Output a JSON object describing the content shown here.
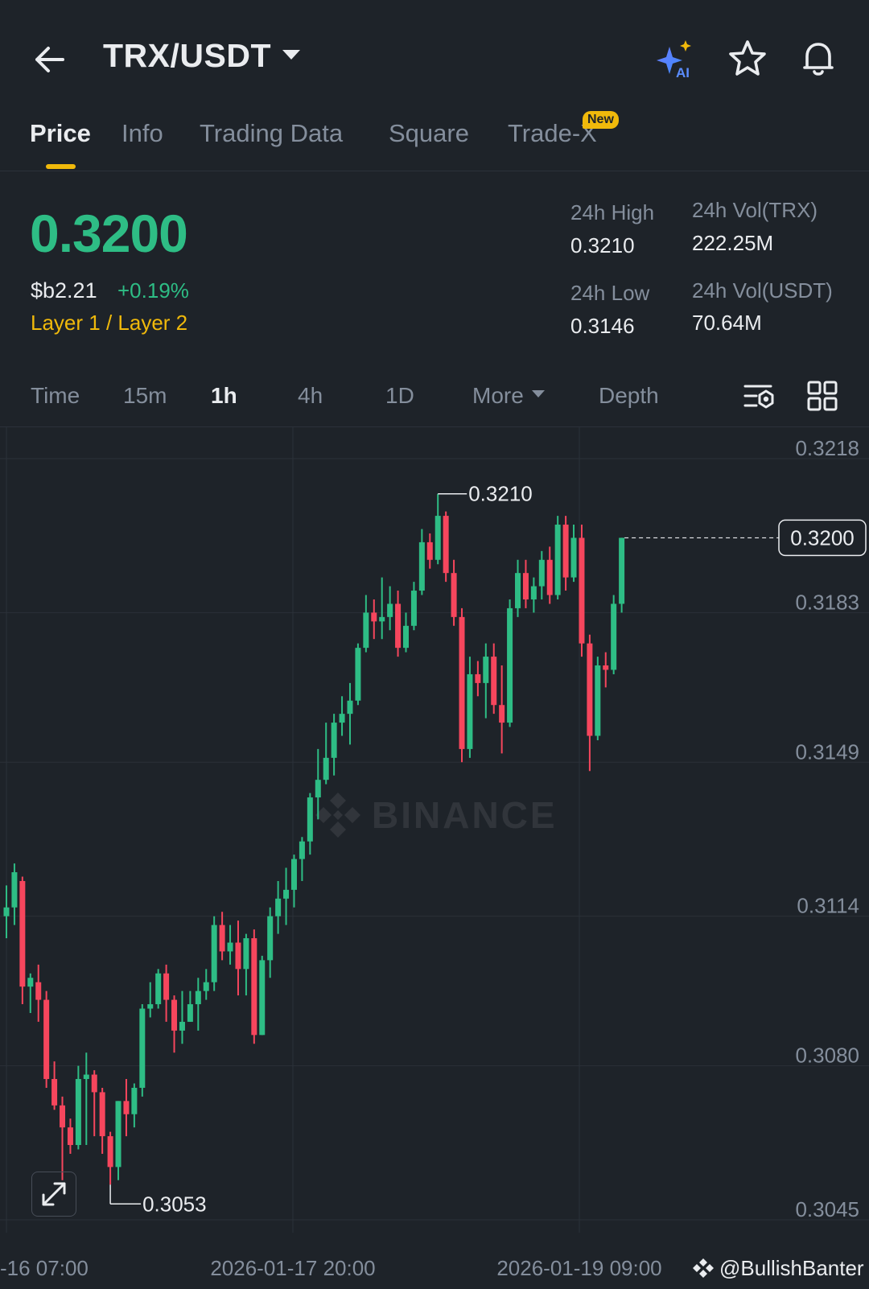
{
  "header": {
    "pair": "TRX/USDT",
    "icons": [
      "back-arrow-icon",
      "ai-sparkle-icon",
      "star-icon",
      "bell-icon"
    ],
    "ai_label": "AI"
  },
  "tabs": [
    {
      "label": "Price",
      "active": true
    },
    {
      "label": "Info"
    },
    {
      "label": "Trading Data"
    },
    {
      "label": "Square"
    },
    {
      "label": "Trade-X",
      "badge": "New"
    }
  ],
  "ticker": {
    "last_price": "0.3200",
    "fiat_price": "$b2.21",
    "change": "+0.19%",
    "tags": "Layer 1 / Layer 2",
    "high_label": "24h High",
    "high": "0.3210",
    "low_label": "24h Low",
    "low": "0.3146",
    "vol_base_label": "24h Vol(TRX)",
    "vol_base": "222.25M",
    "vol_quote_label": "24h Vol(USDT)",
    "vol_quote": "70.64M"
  },
  "intervals": [
    "Time",
    "15m",
    "1h",
    "4h",
    "1D",
    "More",
    "Depth"
  ],
  "active_interval": "1h",
  "watermark": "BINANCE",
  "credit": "@BullishBanter",
  "colors": {
    "up": "#2ebd85",
    "down": "#f6465d",
    "accent": "#f0b90b",
    "bg": "#1e2329"
  },
  "chart_data": {
    "type": "candlestick",
    "interval": "1h",
    "y_ticks": [
      "0.3218",
      "0.3183",
      "0.3149",
      "0.3114",
      "0.3080",
      "0.3045"
    ],
    "x_ticks": [
      "-16 07:00",
      "2026-01-17 20:00",
      "2026-01-19 09:00"
    ],
    "ylim": [
      0.3045,
      0.3218
    ],
    "last_price_label": "0.3200",
    "max_label": "0.3210",
    "min_label": "0.3053",
    "candles": [
      [
        0.3114,
        0.3121,
        0.3109,
        0.3116
      ],
      [
        0.3116,
        0.3126,
        0.3112,
        0.3124
      ],
      [
        0.3122,
        0.3123,
        0.3094,
        0.3098
      ],
      [
        0.3098,
        0.3101,
        0.3092,
        0.31
      ],
      [
        0.3099,
        0.3103,
        0.309,
        0.3095
      ],
      [
        0.3095,
        0.3097,
        0.3075,
        0.3077
      ],
      [
        0.3077,
        0.3081,
        0.307,
        0.3071
      ],
      [
        0.3071,
        0.3073,
        0.3054,
        0.3066
      ],
      [
        0.3066,
        0.3068,
        0.306,
        0.3062
      ],
      [
        0.3062,
        0.308,
        0.3061,
        0.3077
      ],
      [
        0.3077,
        0.3083,
        0.3062,
        0.3078
      ],
      [
        0.3078,
        0.3079,
        0.3064,
        0.3074
      ],
      [
        0.3074,
        0.3075,
        0.306,
        0.3064
      ],
      [
        0.3064,
        0.3065,
        0.3053,
        0.3057
      ],
      [
        0.3057,
        0.3072,
        0.3054,
        0.3072
      ],
      [
        0.3072,
        0.3077,
        0.3064,
        0.3069
      ],
      [
        0.3069,
        0.3076,
        0.3066,
        0.3075
      ],
      [
        0.3075,
        0.3094,
        0.3073,
        0.3093
      ],
      [
        0.3093,
        0.3099,
        0.3091,
        0.3094
      ],
      [
        0.3094,
        0.3102,
        0.3093,
        0.3101
      ],
      [
        0.3101,
        0.3103,
        0.309,
        0.3095
      ],
      [
        0.3095,
        0.3096,
        0.3083,
        0.3088
      ],
      [
        0.3088,
        0.3097,
        0.3085,
        0.309
      ],
      [
        0.309,
        0.3097,
        0.309,
        0.3094
      ],
      [
        0.3094,
        0.31,
        0.3088,
        0.3097
      ],
      [
        0.3097,
        0.3102,
        0.3095,
        0.3099
      ],
      [
        0.3099,
        0.3114,
        0.3097,
        0.3112
      ],
      [
        0.3112,
        0.3115,
        0.3104,
        0.3106
      ],
      [
        0.3106,
        0.3112,
        0.3103,
        0.3108
      ],
      [
        0.3108,
        0.3113,
        0.3096,
        0.3102
      ],
      [
        0.3102,
        0.311,
        0.3096,
        0.3109
      ],
      [
        0.3109,
        0.3111,
        0.3085,
        0.3087
      ],
      [
        0.3087,
        0.3105,
        0.3087,
        0.3104
      ],
      [
        0.3104,
        0.3116,
        0.31,
        0.3114
      ],
      [
        0.3114,
        0.3122,
        0.311,
        0.3118
      ],
      [
        0.3118,
        0.3125,
        0.3112,
        0.312
      ],
      [
        0.312,
        0.3128,
        0.3116,
        0.3127
      ],
      [
        0.3127,
        0.3132,
        0.3122,
        0.3131
      ],
      [
        0.3131,
        0.3142,
        0.3128,
        0.3141
      ],
      [
        0.3141,
        0.3152,
        0.3136,
        0.3145
      ],
      [
        0.3145,
        0.3158,
        0.3144,
        0.315
      ],
      [
        0.315,
        0.316,
        0.3146,
        0.3158
      ],
      [
        0.3158,
        0.3164,
        0.3155,
        0.316
      ],
      [
        0.316,
        0.3167,
        0.3153,
        0.3163
      ],
      [
        0.3163,
        0.3176,
        0.3162,
        0.3175
      ],
      [
        0.3175,
        0.3187,
        0.3174,
        0.3183
      ],
      [
        0.3183,
        0.3186,
        0.3177,
        0.3181
      ],
      [
        0.3181,
        0.3191,
        0.3177,
        0.3182
      ],
      [
        0.3182,
        0.3189,
        0.3179,
        0.3185
      ],
      [
        0.3185,
        0.3188,
        0.3173,
        0.3175
      ],
      [
        0.3175,
        0.3183,
        0.3174,
        0.318
      ],
      [
        0.318,
        0.319,
        0.3179,
        0.3188
      ],
      [
        0.3188,
        0.3202,
        0.3187,
        0.3199
      ],
      [
        0.3199,
        0.3201,
        0.3193,
        0.3195
      ],
      [
        0.3195,
        0.321,
        0.3194,
        0.3205
      ],
      [
        0.3205,
        0.3206,
        0.319,
        0.3192
      ],
      [
        0.3192,
        0.3195,
        0.318,
        0.3182
      ],
      [
        0.3182,
        0.3184,
        0.3149,
        0.3152
      ],
      [
        0.3152,
        0.3173,
        0.315,
        0.3169
      ],
      [
        0.3169,
        0.3172,
        0.3164,
        0.3167
      ],
      [
        0.3167,
        0.3176,
        0.3159,
        0.3173
      ],
      [
        0.3173,
        0.3176,
        0.316,
        0.3162
      ],
      [
        0.3162,
        0.3171,
        0.3151,
        0.3158
      ],
      [
        0.3158,
        0.3186,
        0.3157,
        0.3184
      ],
      [
        0.3184,
        0.3195,
        0.3182,
        0.3192
      ],
      [
        0.3192,
        0.3195,
        0.3184,
        0.3186
      ],
      [
        0.3186,
        0.3191,
        0.3183,
        0.3189
      ],
      [
        0.3189,
        0.3197,
        0.3186,
        0.3195
      ],
      [
        0.3195,
        0.3198,
        0.3185,
        0.3187
      ],
      [
        0.3187,
        0.3205,
        0.3186,
        0.3203
      ],
      [
        0.3203,
        0.3205,
        0.3188,
        0.3191
      ],
      [
        0.3191,
        0.3203,
        0.319,
        0.32
      ],
      [
        0.32,
        0.3203,
        0.3173,
        0.3176
      ],
      [
        0.3176,
        0.3178,
        0.3147,
        0.3155
      ],
      [
        0.3155,
        0.3173,
        0.3154,
        0.3171
      ],
      [
        0.3171,
        0.3174,
        0.3166,
        0.317
      ],
      [
        0.317,
        0.3187,
        0.3169,
        0.3185
      ],
      [
        0.3185,
        0.32,
        0.3183,
        0.32
      ]
    ]
  }
}
